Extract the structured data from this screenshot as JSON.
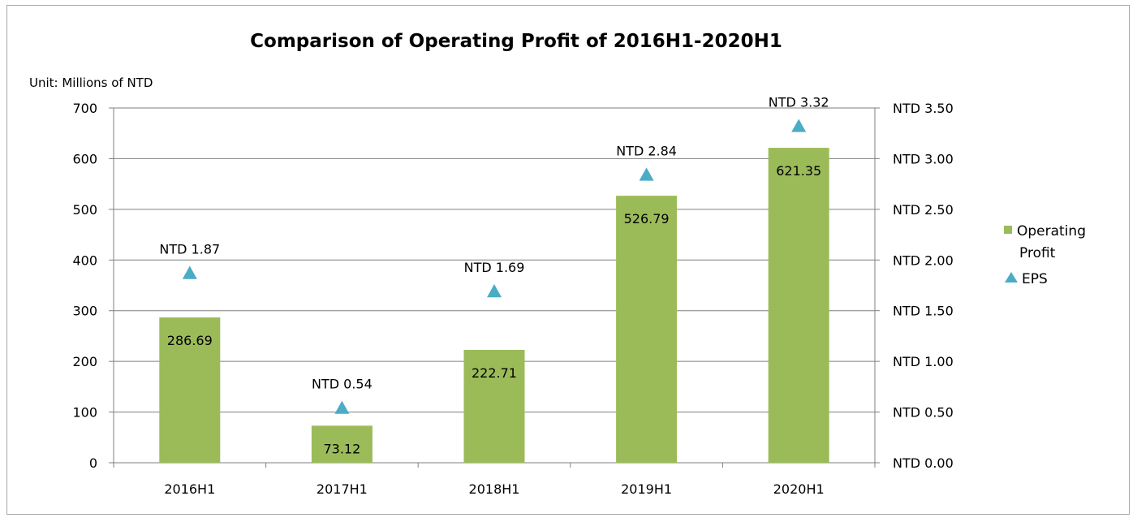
{
  "chart_data": {
    "type": "bar",
    "title": "Comparison of Operating Profit of 2016H1-2020H1",
    "unit_label": "Unit: Millions of NTD",
    "categories": [
      "2016H1",
      "2017H1",
      "2018H1",
      "2019H1",
      "2020H1"
    ],
    "series": [
      {
        "name": "Operating Profit",
        "type": "bar",
        "axis": "left",
        "color": "#9bbb59",
        "values": [
          286.69,
          73.12,
          222.71,
          526.79,
          621.35
        ],
        "labels": [
          "286.69",
          "73.12",
          "222.71",
          "526.79",
          "621.35"
        ]
      },
      {
        "name": "EPS",
        "type": "scatter",
        "marker": "triangle",
        "axis": "right",
        "color": "#4bacc6",
        "values": [
          1.87,
          0.54,
          1.69,
          2.84,
          3.32
        ],
        "labels": [
          "NTD 1.87",
          "NTD 0.54",
          "NTD 1.69",
          "NTD 2.84",
          "NTD 3.32"
        ]
      }
    ],
    "y_left": {
      "range": [
        0,
        700
      ],
      "ticks": [
        0,
        100,
        200,
        300,
        400,
        500,
        600,
        700
      ],
      "tick_labels": [
        "0",
        "100",
        "200",
        "300",
        "400",
        "500",
        "600",
        "700"
      ]
    },
    "y_right": {
      "range": [
        0,
        3.5
      ],
      "ticks": [
        0,
        0.5,
        1,
        1.5,
        2,
        2.5,
        3,
        3.5
      ],
      "tick_labels": [
        "NTD 0.00",
        "NTD 0.50",
        "NTD 1.00",
        "NTD 1.50",
        "NTD 2.00",
        "NTD 2.50",
        "NTD 3.00",
        "NTD 3.50"
      ]
    },
    "legend": {
      "position": "right",
      "entries": [
        {
          "lines": [
            "Operating",
            "Profit"
          ],
          "color": "#9bbb59",
          "marker": "square"
        },
        {
          "lines": [
            "EPS"
          ],
          "color": "#4bacc6",
          "marker": "triangle"
        }
      ]
    },
    "grid": true,
    "colors": {
      "grid": "#7f7f7f",
      "axis": "#7f7f7f",
      "frame": "#a6a6a6"
    }
  }
}
